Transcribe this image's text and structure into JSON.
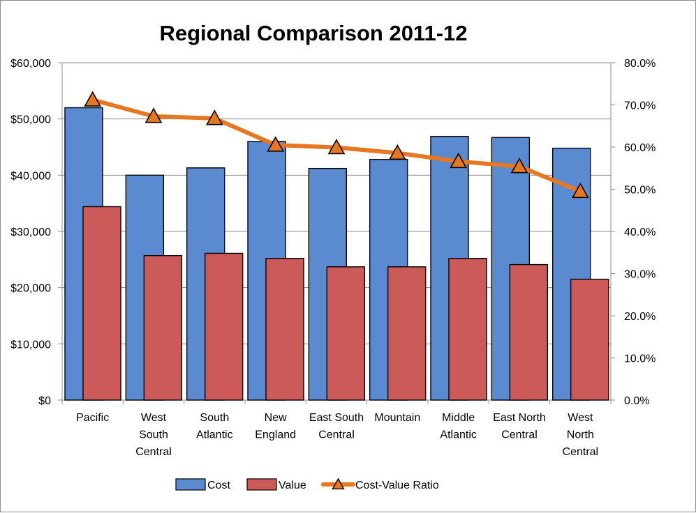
{
  "chart_data": {
    "type": "bar",
    "title": "Regional Comparison 2011-12",
    "categories": [
      [
        "Pacific"
      ],
      [
        "West",
        "South",
        "Central"
      ],
      [
        "South",
        "Atlantic"
      ],
      [
        "New",
        "England"
      ],
      [
        "East South",
        "Central"
      ],
      [
        "Mountain"
      ],
      [
        "Middle",
        "Atlantic"
      ],
      [
        "East North",
        "Central"
      ],
      [
        "West",
        "North",
        "Central"
      ]
    ],
    "series": [
      {
        "name": "Cost",
        "type": "bar",
        "axis": "left",
        "color": "#5a8ad0",
        "values": [
          52000,
          40000,
          41300,
          46000,
          41200,
          42800,
          46900,
          46700,
          44800
        ]
      },
      {
        "name": "Value",
        "type": "bar",
        "axis": "left",
        "color": "#cc5a58",
        "values": [
          34400,
          25700,
          26100,
          25200,
          23700,
          23700,
          25200,
          24100,
          21500
        ]
      },
      {
        "name": "Cost-Value Ratio",
        "type": "line",
        "axis": "right",
        "color": "#e87722",
        "marker": "triangle",
        "values": [
          0.712,
          0.673,
          0.668,
          0.605,
          0.599,
          0.586,
          0.566,
          0.554,
          0.495
        ]
      }
    ],
    "y_left": {
      "min": 0,
      "max": 60000,
      "step": 10000,
      "tick_labels": [
        "$0",
        "$10,000",
        "$20,000",
        "$30,000",
        "$40,000",
        "$50,000",
        "$60,000"
      ]
    },
    "y_right": {
      "min": 0,
      "max": 0.8,
      "step": 0.1,
      "tick_labels": [
        "0.0%",
        "10.0%",
        "20.0%",
        "30.0%",
        "40.0%",
        "50.0%",
        "60.0%",
        "70.0%",
        "80.0%"
      ]
    },
    "grid": true,
    "legend": "bottom"
  }
}
